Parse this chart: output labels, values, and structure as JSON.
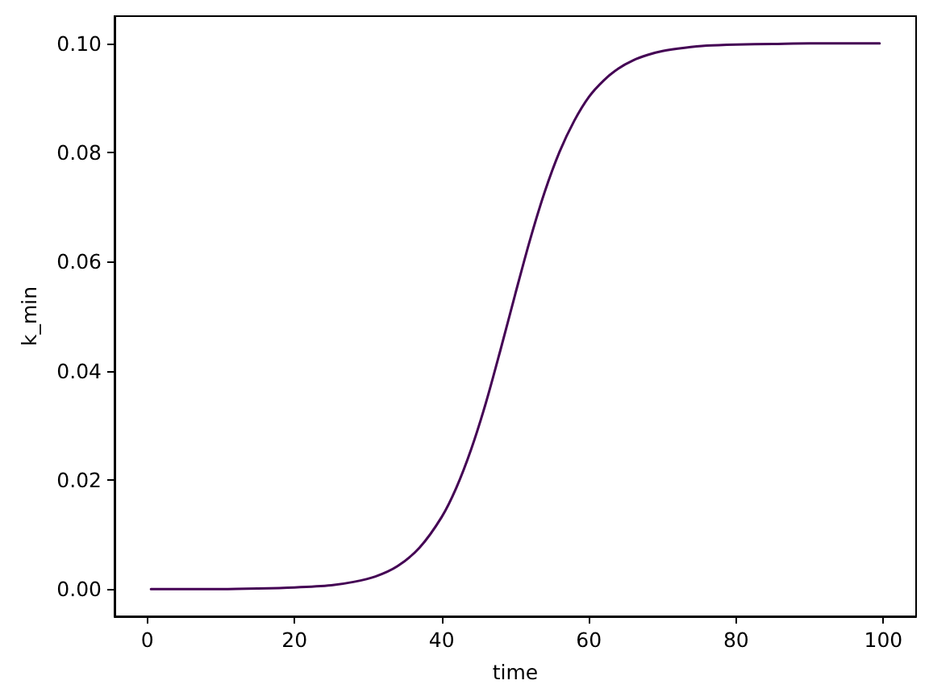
{
  "chart_data": {
    "type": "line",
    "xlabel": "time",
    "ylabel": "k_min",
    "series": [
      {
        "color": "#440154",
        "x": [
          0.5,
          5,
          10,
          15,
          20,
          25,
          28,
          31,
          34,
          37,
          40,
          42,
          44,
          46,
          48,
          50,
          52,
          54,
          56,
          58,
          60,
          62,
          64,
          66,
          68,
          70,
          73,
          76,
          80,
          85,
          90,
          95,
          99.5
        ],
        "values": [
          0.0,
          0.0,
          0.0,
          0.0001,
          0.0003,
          0.0007,
          0.0013,
          0.0023,
          0.0042,
          0.0076,
          0.0132,
          0.0186,
          0.0256,
          0.0341,
          0.0439,
          0.0541,
          0.064,
          0.0728,
          0.0801,
          0.0858,
          0.0902,
          0.0932,
          0.0954,
          0.0969,
          0.0979,
          0.0986,
          0.0992,
          0.0996,
          0.0998,
          0.0999,
          0.1,
          0.1,
          0.1
        ]
      }
    ],
    "xlim": [
      -4.45,
      104.45
    ],
    "xticks": [
      0,
      20,
      40,
      60,
      80,
      100
    ],
    "ylim": [
      -0.005,
      0.105
    ],
    "yticks": [
      {
        "value": 0,
        "label": "0.00"
      },
      0.02,
      0.04,
      0.06,
      0.08,
      {
        "value": 0.1,
        "label": "0.10"
      }
    ]
  }
}
